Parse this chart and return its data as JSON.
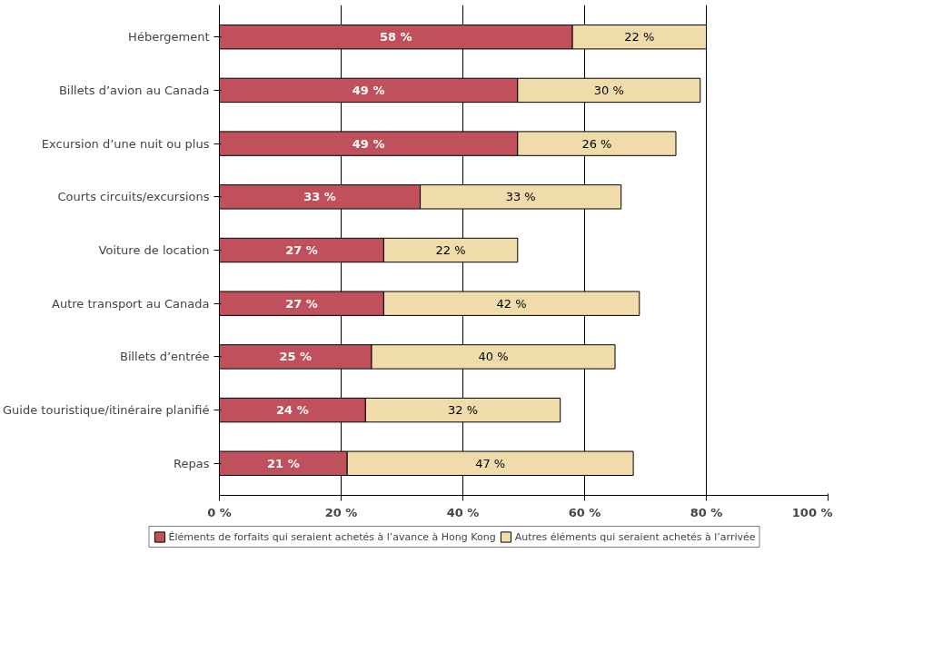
{
  "chart_data": {
    "type": "bar",
    "orientation": "horizontal",
    "stacked": true,
    "categories": [
      "Hébergement",
      "Billets d’avion au Canada",
      "Excursion d’une nuit ou plus",
      "Courts circuits/excursions",
      "Voiture de location",
      "Autre transport au Canada",
      "Billets d’entrée",
      "Guide touristique/itinéraire planifié",
      "Repas"
    ],
    "series": [
      {
        "name": "Éléments de forfaits qui seraient achetés à l’avance à Hong Kong",
        "color": "#c0505c",
        "values": [
          58,
          49,
          49,
          33,
          27,
          27,
          25,
          24,
          21
        ],
        "value_labels": [
          "58 %",
          "49 %",
          "49 %",
          "33 %",
          "27 %",
          "27 %",
          "25 %",
          "24 %",
          "21 %"
        ]
      },
      {
        "name": "Autres éléments qui seraient achetés à l’arrivée",
        "color": "#efdcaa",
        "values": [
          22,
          30,
          26,
          33,
          22,
          42,
          40,
          32,
          47
        ],
        "value_labels": [
          "22 %",
          "30 %",
          "26 %",
          "33 %",
          "22 %",
          "42 %",
          "40 %",
          "32 %",
          "47 %"
        ]
      }
    ],
    "xlim": [
      0,
      100
    ],
    "xticks": [
      {
        "value": 0,
        "label": "0 %"
      },
      {
        "value": 20,
        "label": "20 %"
      },
      {
        "value": 40,
        "label": "40 %"
      },
      {
        "value": 60,
        "label": "60 %"
      },
      {
        "value": 80,
        "label": "80 %"
      },
      {
        "value": 100,
        "label": "100 %"
      }
    ],
    "grid": "x",
    "legend": "bottom"
  }
}
